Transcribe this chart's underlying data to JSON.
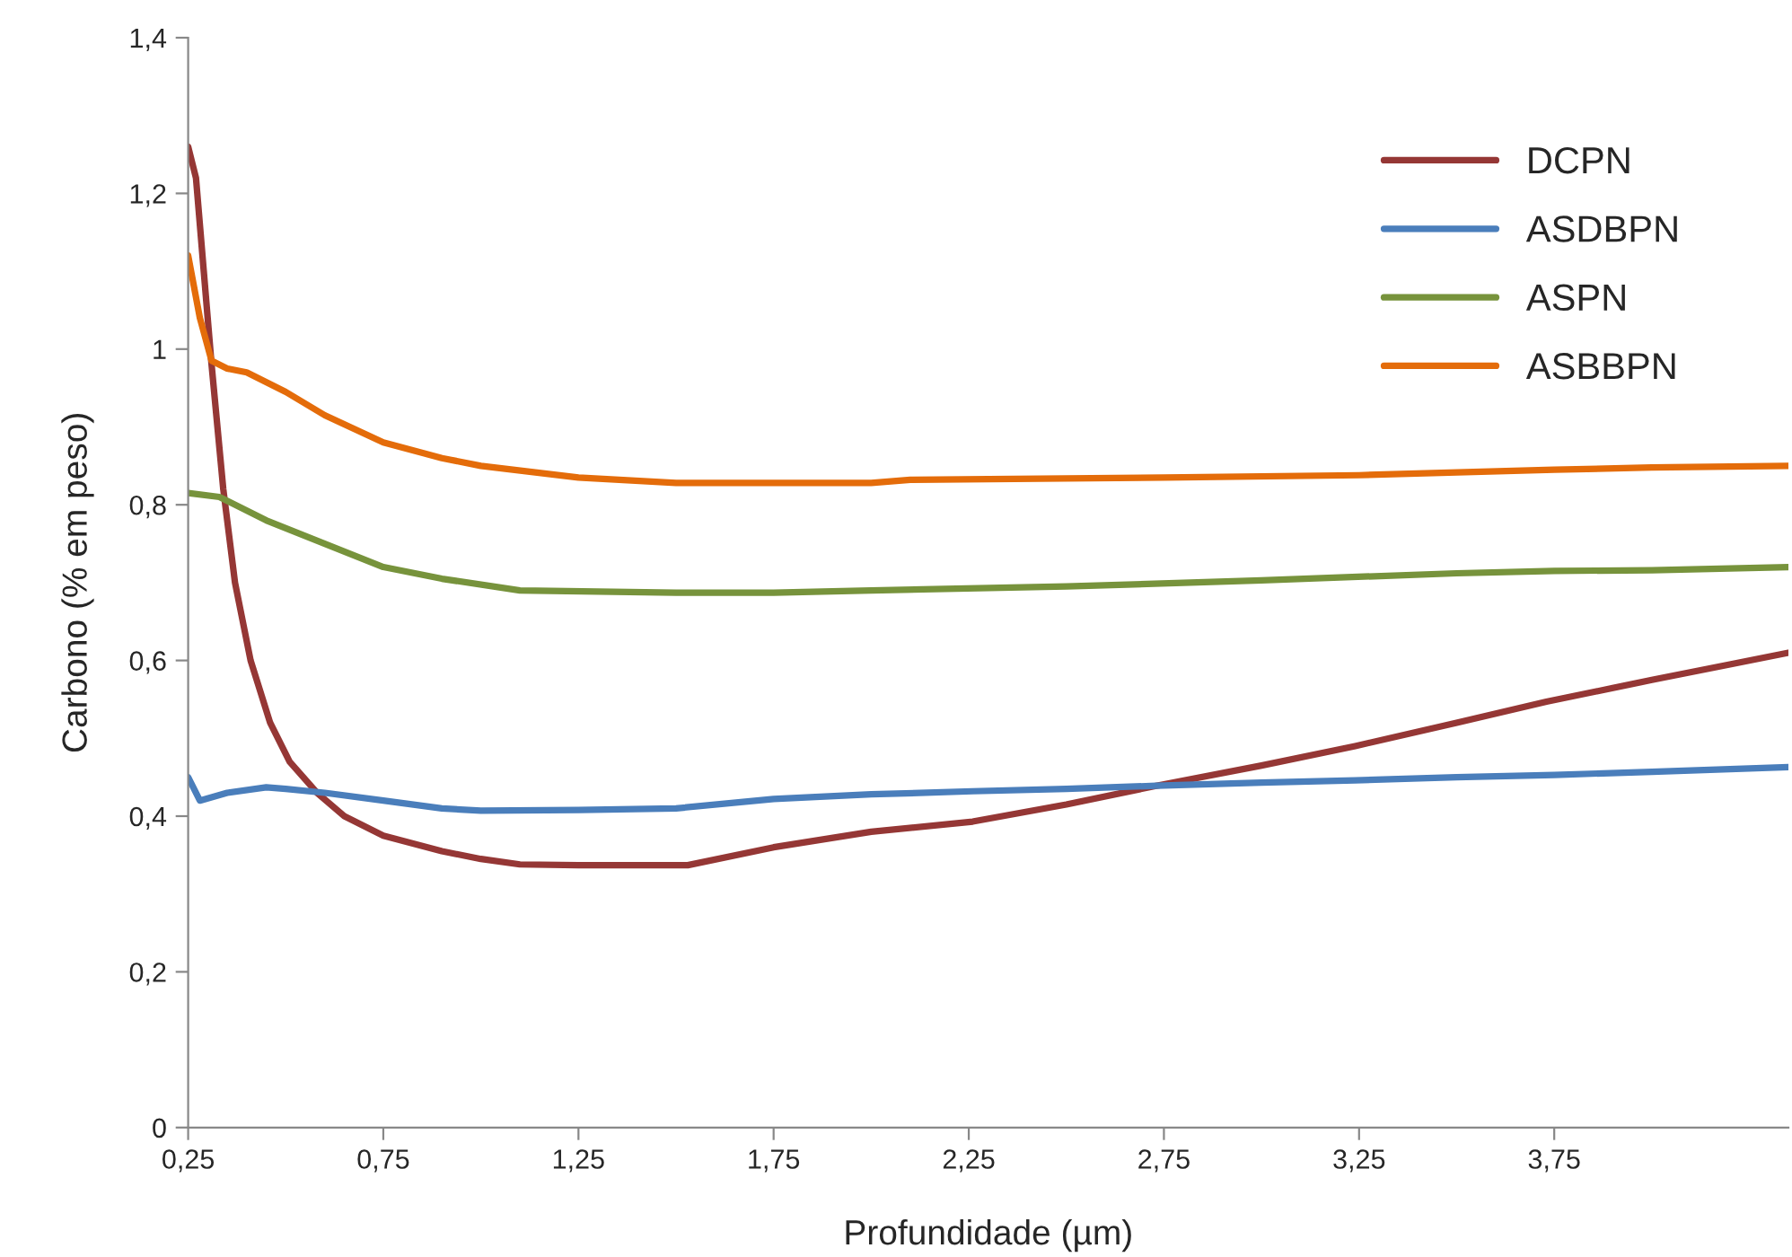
{
  "chart_data": {
    "type": "line",
    "xlabel": "Profundidade (µm)",
    "ylabel": "Carbono (% em peso)",
    "xlim": [
      0.25,
      4.35
    ],
    "ylim": [
      0,
      1.4
    ],
    "xticks": [
      {
        "value": 0.25,
        "label": "0,25"
      },
      {
        "value": 0.75,
        "label": "0,75"
      },
      {
        "value": 1.25,
        "label": "1,25"
      },
      {
        "value": 1.75,
        "label": "1,75"
      },
      {
        "value": 2.25,
        "label": "2,25"
      },
      {
        "value": 2.75,
        "label": "2,75"
      },
      {
        "value": 3.25,
        "label": "3,25"
      },
      {
        "value": 3.75,
        "label": "3,75"
      }
    ],
    "yticks": [
      0,
      {
        "value": 0.2,
        "label": "0,2"
      },
      {
        "value": 0.4,
        "label": "0,4"
      },
      {
        "value": 0.6,
        "label": "0,6"
      },
      {
        "value": 0.8,
        "label": "0,8"
      },
      1,
      {
        "value": 1.2,
        "label": "1,2"
      },
      {
        "value": 1.4,
        "label": "1,4"
      }
    ],
    "grid": false,
    "legend": "top right",
    "marker": "none",
    "line_style": "solid",
    "series": [
      {
        "name": "DCPN",
        "color": "#953735",
        "x": [
          0.25,
          0.27,
          0.29,
          0.31,
          0.34,
          0.37,
          0.41,
          0.46,
          0.51,
          0.58,
          0.65,
          0.75,
          0.9,
          1.0,
          1.1,
          1.25,
          1.53,
          1.75,
          2.0,
          2.26,
          2.5,
          2.73,
          3.0,
          3.24,
          3.5,
          3.73,
          4.0,
          4.2,
          4.35
        ],
        "values": [
          1.26,
          1.22,
          1.1,
          0.98,
          0.82,
          0.7,
          0.6,
          0.52,
          0.47,
          0.43,
          0.4,
          0.375,
          0.355,
          0.345,
          0.338,
          0.337,
          0.337,
          0.36,
          0.38,
          0.393,
          0.415,
          0.439,
          0.465,
          0.49,
          0.52,
          0.547,
          0.575,
          0.595,
          0.61
        ]
      },
      {
        "name": "ASDBPN",
        "color": "#4a7ebb",
        "x": [
          0.25,
          0.28,
          0.35,
          0.45,
          0.5,
          0.6,
          0.75,
          0.9,
          1.0,
          1.25,
          1.5,
          1.75,
          2.0,
          2.26,
          2.5,
          2.73,
          3.0,
          3.24,
          3.5,
          3.75,
          4.0,
          4.35
        ],
        "values": [
          0.45,
          0.42,
          0.43,
          0.437,
          0.435,
          0.43,
          0.42,
          0.41,
          0.407,
          0.408,
          0.41,
          0.422,
          0.428,
          0.432,
          0.435,
          0.439,
          0.443,
          0.446,
          0.45,
          0.453,
          0.457,
          0.463
        ]
      },
      {
        "name": "ASPN",
        "color": "#77933c",
        "x": [
          0.25,
          0.33,
          0.45,
          0.6,
          0.75,
          0.9,
          1.1,
          1.5,
          1.75,
          2.0,
          2.5,
          3.0,
          3.5,
          3.75,
          4.0,
          4.35
        ],
        "values": [
          0.815,
          0.81,
          0.78,
          0.75,
          0.72,
          0.705,
          0.69,
          0.687,
          0.687,
          0.69,
          0.695,
          0.703,
          0.712,
          0.715,
          0.716,
          0.72
        ]
      },
      {
        "name": "ASBBPN",
        "color": "#e46c0a",
        "x": [
          0.25,
          0.28,
          0.31,
          0.35,
          0.4,
          0.5,
          0.6,
          0.75,
          0.9,
          1.0,
          1.25,
          1.5,
          2.0,
          2.1,
          2.75,
          3.25,
          3.75,
          4.0,
          4.35
        ],
        "values": [
          1.12,
          1.04,
          0.985,
          0.975,
          0.97,
          0.945,
          0.915,
          0.88,
          0.86,
          0.85,
          0.835,
          0.828,
          0.828,
          0.832,
          0.835,
          0.838,
          0.845,
          0.848,
          0.85
        ]
      }
    ]
  }
}
